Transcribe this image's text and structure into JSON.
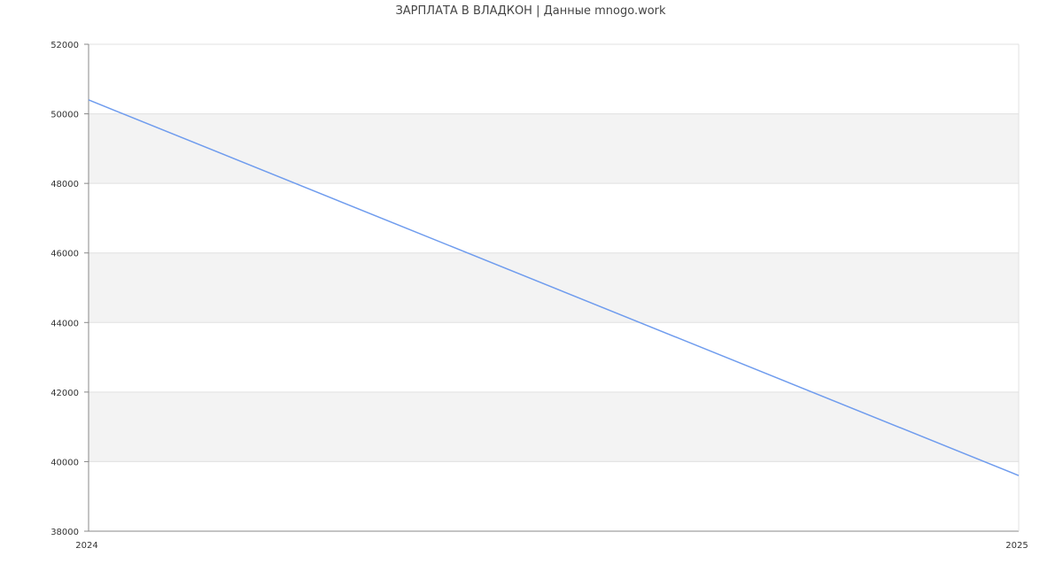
{
  "chart_data": {
    "type": "line",
    "title": "ЗАРПЛАТА В ВЛАДКОН | Данные mnogo.work",
    "xlabel": "",
    "ylabel": "",
    "x": [
      "2024",
      "2025"
    ],
    "series": [
      {
        "values": [
          50400,
          39600
        ]
      }
    ],
    "xlim": [
      "2024",
      "2025"
    ],
    "ylim": [
      38000,
      52000
    ],
    "yticks": [
      38000,
      40000,
      42000,
      44000,
      46000,
      48000,
      50000,
      52000
    ],
    "grid": true,
    "alternating_bands": true,
    "legend": "none",
    "colors": {
      "line": "#6f9cee",
      "band": "#f3f3f3",
      "grid": "#e0e0e0",
      "axis": "#888888",
      "text": "#333333"
    }
  }
}
